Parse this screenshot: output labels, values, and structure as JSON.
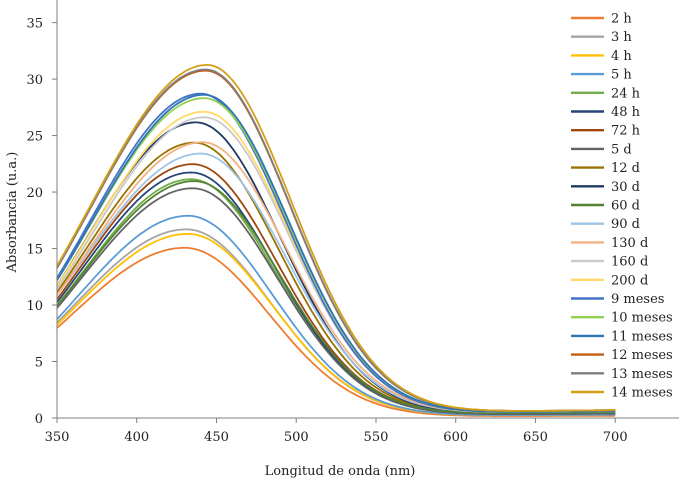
{
  "chart_data": {
    "type": "line",
    "title": "",
    "xlabel": "Longitud de onda (nm)",
    "ylabel": "Absorbancia (u.a.)",
    "xlim": [
      350,
      740
    ],
    "ylim": [
      0,
      37
    ],
    "x_ticks": [
      "350",
      "400",
      "450",
      "500",
      "550",
      "600",
      "650",
      "700"
    ],
    "y_ticks": [
      "0",
      "5",
      "10",
      "15",
      "20",
      "25",
      "30",
      "35"
    ],
    "grid": false,
    "legend": "right",
    "series": [
      {
        "name": "2 h",
        "color": "#ed7d31",
        "peak_x": 430,
        "peak": 15.0,
        "start": 8.0,
        "end": 0.2
      },
      {
        "name": "3 h",
        "color": "#a5a5a5",
        "peak_x": 431,
        "peak": 16.6,
        "start": 8.5,
        "end": 0.3
      },
      {
        "name": "4 h",
        "color": "#ffc000",
        "peak_x": 432,
        "peak": 16.2,
        "start": 8.3,
        "end": 0.3
      },
      {
        "name": "5 h",
        "color": "#5b9bd5",
        "peak_x": 432,
        "peak": 17.8,
        "start": 8.8,
        "end": 0.3
      },
      {
        "name": "24 h",
        "color": "#70ad47",
        "peak_x": 434,
        "peak": 21.0,
        "start": 10.0,
        "end": 0.4
      },
      {
        "name": "48 h",
        "color": "#264478",
        "peak_x": 434,
        "peak": 21.6,
        "start": 10.3,
        "end": 0.4
      },
      {
        "name": "72 h",
        "color": "#9e480e",
        "peak_x": 435,
        "peak": 22.3,
        "start": 10.6,
        "end": 0.5
      },
      {
        "name": "5 d",
        "color": "#636363",
        "peak_x": 435,
        "peak": 20.2,
        "start": 9.8,
        "end": 0.4
      },
      {
        "name": "12 d",
        "color": "#997300",
        "peak_x": 436,
        "peak": 24.2,
        "start": 11.2,
        "end": 0.5
      },
      {
        "name": "30 d",
        "color": "#1f3864",
        "peak_x": 437,
        "peak": 26.0,
        "start": 11.8,
        "end": 0.5
      },
      {
        "name": "60 d",
        "color": "#548235",
        "peak_x": 436,
        "peak": 20.8,
        "start": 10.0,
        "end": 0.5
      },
      {
        "name": "90 d",
        "color": "#9dc3e6",
        "peak_x": 440,
        "peak": 23.2,
        "start": 11.0,
        "end": 0.6
      },
      {
        "name": "130 d",
        "color": "#f4b183",
        "peak_x": 441,
        "peak": 24.2,
        "start": 11.0,
        "end": 0.6
      },
      {
        "name": "160 d",
        "color": "#c9c9c9",
        "peak_x": 442,
        "peak": 26.4,
        "start": 11.5,
        "end": 0.6
      },
      {
        "name": "200 d",
        "color": "#ffd966",
        "peak_x": 442,
        "peak": 26.9,
        "start": 11.8,
        "end": 0.6
      },
      {
        "name": "9 meses",
        "color": "#4472c4",
        "peak_x": 440,
        "peak": 28.5,
        "start": 12.5,
        "end": 0.6
      },
      {
        "name": "10 meses",
        "color": "#92d050",
        "peak_x": 442,
        "peak": 28.1,
        "start": 12.3,
        "end": 0.6
      },
      {
        "name": "11 meses",
        "color": "#2e75b6",
        "peak_x": 442,
        "peak": 28.4,
        "start": 12.3,
        "end": 0.6
      },
      {
        "name": "12 meses",
        "color": "#c55a11",
        "peak_x": 443,
        "peak": 30.5,
        "start": 13.4,
        "end": 0.7
      },
      {
        "name": "13 meses",
        "color": "#7f7f7f",
        "peak_x": 443,
        "peak": 30.6,
        "start": 13.4,
        "end": 0.7
      },
      {
        "name": "14 meses",
        "color": "#d4a017",
        "peak_x": 444,
        "peak": 31.0,
        "start": 13.6,
        "end": 0.7
      }
    ]
  }
}
